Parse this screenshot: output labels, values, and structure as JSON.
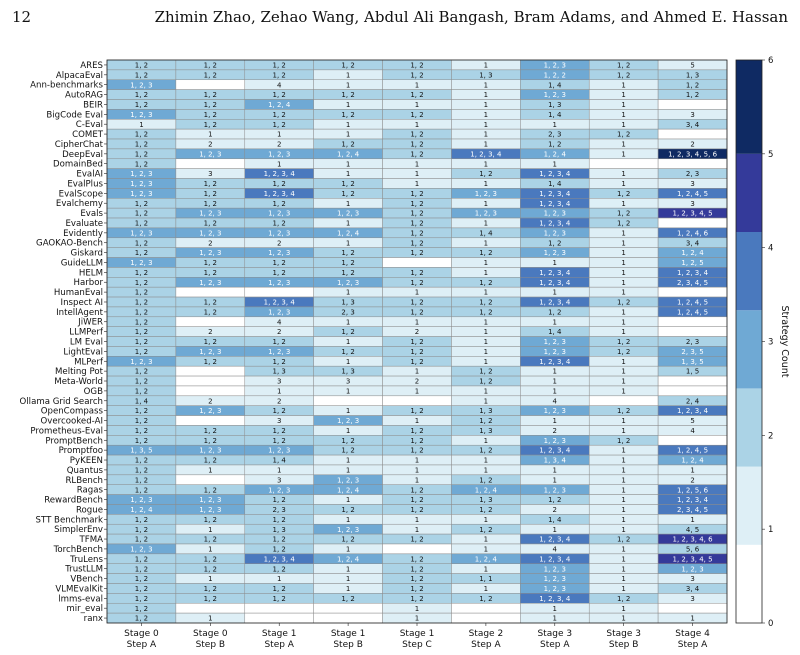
{
  "page": {
    "number": "12",
    "authors": "Zhimin Zhao, Zehao Wang, Abdul Ali Bangash, Bram Adams, and Ahmed E. Hassan"
  },
  "chart_data": {
    "type": "heatmap",
    "columns": [
      {
        "stage": "Stage 0",
        "step": "Step A"
      },
      {
        "stage": "Stage 0",
        "step": "Step B"
      },
      {
        "stage": "Stage 1",
        "step": "Step A"
      },
      {
        "stage": "Stage 1",
        "step": "Step B"
      },
      {
        "stage": "Stage 1",
        "step": "Step C"
      },
      {
        "stage": "Stage 2",
        "step": "Step A"
      },
      {
        "stage": "Stage 3",
        "step": "Step A"
      },
      {
        "stage": "Stage 3",
        "step": "Step B"
      },
      {
        "stage": "Stage 4",
        "step": "Step A"
      }
    ],
    "rows": [
      {
        "name": "ARES",
        "cells": [
          "1, 2",
          "1, 2",
          "1, 2",
          "1, 2",
          "1, 2",
          "1",
          "1, 2, 3",
          "1, 2",
          "5"
        ]
      },
      {
        "name": "AlpacaEval",
        "cells": [
          "1, 2",
          "1, 2",
          "1, 2",
          "1",
          "1, 2",
          "1, 3",
          "1, 2, 2",
          "1, 2",
          "1, 3"
        ]
      },
      {
        "name": "Ann-benchmarks",
        "cells": [
          "1, 2, 3",
          "",
          "4",
          "1",
          "1",
          "1",
          "1, 4",
          "1",
          "1, 2"
        ]
      },
      {
        "name": "AutoRAG",
        "cells": [
          "1, 2",
          "1, 2",
          "1, 2",
          "1, 2",
          "1, 2",
          "1",
          "1, 2, 3",
          "1",
          "1, 2"
        ]
      },
      {
        "name": "BEIR",
        "cells": [
          "1, 2",
          "1, 2",
          "1, 2, 4",
          "1",
          "1",
          "1",
          "1, 3",
          "1",
          ""
        ]
      },
      {
        "name": "BigCode Eval",
        "cells": [
          "1, 2, 3",
          "1, 2",
          "1, 2",
          "1, 2",
          "1, 2",
          "1",
          "1, 4",
          "1",
          "3"
        ]
      },
      {
        "name": "C-Eval",
        "cells": [
          "1",
          "1, 2",
          "1, 2",
          "1",
          "1",
          "1",
          "1",
          "1",
          "3, 4"
        ]
      },
      {
        "name": "COMET",
        "cells": [
          "1, 2",
          "1",
          "1",
          "1",
          "1, 2",
          "1",
          "2, 3",
          "1, 2",
          ""
        ]
      },
      {
        "name": "CipherChat",
        "cells": [
          "1, 2",
          "2",
          "2",
          "1, 2",
          "1, 2",
          "1",
          "1, 2",
          "1",
          "2"
        ]
      },
      {
        "name": "DeepEval",
        "cells": [
          "1, 2",
          "1, 2, 3",
          "1, 2, 3",
          "1, 2, 4",
          "1, 2",
          "1, 2, 3, 4",
          "1, 2, 4",
          "1",
          "1, 2, 3, 4, 5, 6"
        ]
      },
      {
        "name": "DomainBed",
        "cells": [
          "1, 2",
          "",
          "1",
          "1",
          "1",
          "1",
          "1",
          "",
          ""
        ]
      },
      {
        "name": "EvalAI",
        "cells": [
          "1, 2, 3",
          "3",
          "1, 2, 3, 4",
          "1",
          "1",
          "1, 2",
          "1, 2, 3, 4",
          "1",
          "2, 3"
        ]
      },
      {
        "name": "EvalPlus",
        "cells": [
          "1, 2, 3",
          "1, 2",
          "1, 2",
          "1, 2",
          "1",
          "1",
          "1, 4",
          "1",
          "3"
        ]
      },
      {
        "name": "EvalScope",
        "cells": [
          "1, 2, 3",
          "1, 2",
          "1, 2, 3, 4",
          "1, 2",
          "1, 2",
          "1, 2, 3",
          "1, 2, 3, 4",
          "1, 2",
          "1, 2, 4, 5"
        ]
      },
      {
        "name": "Evalchemy",
        "cells": [
          "1, 2",
          "1, 2",
          "1, 2",
          "1",
          "1, 2",
          "1",
          "1, 2, 3, 4",
          "1",
          "3"
        ]
      },
      {
        "name": "Evals",
        "cells": [
          "1, 2",
          "1, 2, 3",
          "1, 2, 3",
          "1, 2, 3",
          "1, 2",
          "1, 2, 3",
          "1, 2, 3",
          "1, 2",
          "1, 2, 3, 4, 5"
        ]
      },
      {
        "name": "Evaluate",
        "cells": [
          "1, 2",
          "1, 2",
          "1, 2",
          "1",
          "1, 2",
          "1",
          "1, 2, 3, 4",
          "1, 2",
          ""
        ]
      },
      {
        "name": "Evidently",
        "cells": [
          "1, 2, 3",
          "1, 2, 3",
          "1, 2, 3",
          "1, 2, 4",
          "1, 2",
          "1, 4",
          "1, 2, 3",
          "1",
          "1, 2, 4, 6"
        ]
      },
      {
        "name": "GAOKAO-Bench",
        "cells": [
          "1, 2",
          "2",
          "2",
          "1",
          "1, 2",
          "1",
          "1, 2",
          "1",
          "3, 4"
        ]
      },
      {
        "name": "Giskard",
        "cells": [
          "1, 2",
          "1, 2, 3",
          "1, 2, 3",
          "1, 2",
          "1, 2",
          "1, 2",
          "1, 2, 3",
          "1",
          "1, 2, 4"
        ]
      },
      {
        "name": "GuideLLM",
        "cells": [
          "1, 2, 3",
          "1, 2",
          "1, 2",
          "1, 2",
          "",
          "1",
          "1",
          "1",
          "1, 2, 5"
        ]
      },
      {
        "name": "HELM",
        "cells": [
          "1, 2",
          "1, 2",
          "1, 2",
          "1, 2",
          "1, 2",
          "1",
          "1, 2, 3, 4",
          "1",
          "1, 2, 3, 4"
        ]
      },
      {
        "name": "Harbor",
        "cells": [
          "1, 2",
          "1, 2, 3",
          "1, 2, 3",
          "1, 2, 3",
          "1, 2",
          "1, 2",
          "1, 2, 3, 4",
          "1",
          "2, 3, 4, 5"
        ]
      },
      {
        "name": "HumanEval",
        "cells": [
          "1, 2",
          "",
          "",
          "1",
          "1",
          "1",
          "1",
          "1",
          ""
        ]
      },
      {
        "name": "Inspect AI",
        "cells": [
          "1, 2",
          "1, 2",
          "1, 2, 3, 4",
          "1, 3",
          "1, 2",
          "1, 2",
          "1, 2, 3, 4",
          "1, 2",
          "1, 2, 4, 5"
        ]
      },
      {
        "name": "IntellAgent",
        "cells": [
          "1, 2",
          "1, 2",
          "1, 2, 3",
          "2, 3",
          "1, 2",
          "1, 2",
          "1, 2",
          "1",
          "1, 2, 4, 5"
        ]
      },
      {
        "name": "JiWER",
        "cells": [
          "1, 2",
          "",
          "4",
          "1",
          "1",
          "1",
          "1",
          "1",
          ""
        ]
      },
      {
        "name": "LLMPerf",
        "cells": [
          "1, 2",
          "2",
          "2",
          "1, 2",
          "2",
          "1",
          "1, 4",
          "1",
          ""
        ]
      },
      {
        "name": "LM Eval",
        "cells": [
          "1, 2",
          "1, 2",
          "1, 2",
          "1",
          "1, 2",
          "1",
          "1, 2, 3",
          "1, 2",
          "2, 3"
        ]
      },
      {
        "name": "LightEval",
        "cells": [
          "1, 2",
          "1, 2, 3",
          "1, 2, 3",
          "1, 2",
          "1, 2",
          "1",
          "1, 2, 3",
          "1, 2",
          "2, 3, 5"
        ]
      },
      {
        "name": "MLPerf",
        "cells": [
          "1, 2, 3",
          "1, 2",
          "1, 2",
          "1",
          "1, 2",
          "1",
          "1, 2, 3, 4",
          "1",
          "1, 3, 5"
        ]
      },
      {
        "name": "Melting Pot",
        "cells": [
          "1, 2",
          "",
          "1, 3",
          "1, 3",
          "1",
          "1, 2",
          "1",
          "1",
          "1, 5"
        ]
      },
      {
        "name": "Meta-World",
        "cells": [
          "1, 2",
          "",
          "3",
          "3",
          "2",
          "1, 2",
          "1",
          "1",
          ""
        ]
      },
      {
        "name": "OGB",
        "cells": [
          "1, 2",
          "",
          "1",
          "1",
          "1",
          "1",
          "1",
          "1",
          ""
        ]
      },
      {
        "name": "Ollama Grid Search",
        "cells": [
          "1, 4",
          "2",
          "2",
          "",
          "",
          "1",
          "4",
          "",
          "2, 4"
        ]
      },
      {
        "name": "OpenCompass",
        "cells": [
          "1, 2",
          "1, 2, 3",
          "1, 2",
          "1",
          "1, 2",
          "1, 3",
          "1, 2, 3",
          "1, 2",
          "1, 2, 3, 4"
        ]
      },
      {
        "name": "Overcooked-AI",
        "cells": [
          "1, 2",
          "",
          "3",
          "1, 2, 3",
          "1",
          "1, 2",
          "1",
          "1",
          "5"
        ]
      },
      {
        "name": "Prometheus-Eval",
        "cells": [
          "1, 2",
          "1, 2",
          "1, 2",
          "1",
          "1, 2",
          "1, 3",
          "2",
          "1",
          "4"
        ]
      },
      {
        "name": "PromptBench",
        "cells": [
          "1, 2",
          "1, 2",
          "1, 2",
          "1, 2",
          "1, 2",
          "1",
          "1, 2, 3",
          "1, 2",
          ""
        ]
      },
      {
        "name": "Promptfoo",
        "cells": [
          "1, 3, 5",
          "1, 2, 3",
          "1, 2, 3",
          "1, 2",
          "1, 2",
          "1, 2",
          "1, 2, 3, 4",
          "1",
          "1, 2, 4, 5"
        ]
      },
      {
        "name": "PyKEEN",
        "cells": [
          "1, 2",
          "1, 2",
          "1, 4",
          "1",
          "1",
          "1",
          "1, 3, 4",
          "1",
          "1, 2, 4"
        ]
      },
      {
        "name": "Quantus",
        "cells": [
          "1, 2",
          "1",
          "1",
          "1",
          "1",
          "1",
          "1",
          "1",
          "1"
        ]
      },
      {
        "name": "RLBench",
        "cells": [
          "1, 2",
          "",
          "3",
          "1, 2, 3",
          "1",
          "1, 2",
          "1",
          "1",
          "2"
        ]
      },
      {
        "name": "Ragas",
        "cells": [
          "1, 2",
          "1, 2",
          "1, 2, 3",
          "1, 2, 4",
          "1, 2",
          "1, 2, 4",
          "1, 2, 3",
          "1",
          "1, 2, 5, 6"
        ]
      },
      {
        "name": "RewardBench",
        "cells": [
          "1, 2, 3",
          "1, 2, 3",
          "1, 2",
          "1",
          "1, 2",
          "1, 3",
          "1, 2",
          "1",
          "1, 2, 3, 4"
        ]
      },
      {
        "name": "Rogue",
        "cells": [
          "1, 2, 4",
          "1, 2, 3",
          "2, 3",
          "1, 2",
          "1, 2",
          "1, 2",
          "2",
          "1",
          "2, 3, 4, 5"
        ]
      },
      {
        "name": "STT Benchmark",
        "cells": [
          "1, 2",
          "1, 2",
          "1, 2",
          "1",
          "1",
          "1",
          "1, 4",
          "1",
          "1"
        ]
      },
      {
        "name": "SimplerEnv",
        "cells": [
          "1, 2",
          "1",
          "1, 3",
          "1, 2, 3",
          "1",
          "1, 2",
          "1",
          "1",
          "4, 5"
        ]
      },
      {
        "name": "TFMA",
        "cells": [
          "1, 2",
          "1, 2",
          "1, 2",
          "1, 2",
          "1, 2",
          "1",
          "1, 2, 3, 4",
          "1, 2",
          "1, 2, 3, 4, 6"
        ]
      },
      {
        "name": "TorchBench",
        "cells": [
          "1, 2, 3",
          "1",
          "1, 2",
          "1",
          "",
          "1",
          "4",
          "1",
          "5, 6"
        ]
      },
      {
        "name": "TruLens",
        "cells": [
          "1, 2",
          "1, 2",
          "1, 2, 3, 4",
          "1, 2, 4",
          "1, 2",
          "1, 2, 4",
          "1, 2, 3, 4",
          "1",
          "1, 2, 3, 4, 5"
        ]
      },
      {
        "name": "TrustLLM",
        "cells": [
          "1, 2",
          "1, 2",
          "1, 2",
          "1",
          "1, 2",
          "1",
          "1, 2, 3",
          "1",
          "1, 2, 3"
        ]
      },
      {
        "name": "VBench",
        "cells": [
          "1, 2",
          "1",
          "1",
          "1",
          "1, 2",
          "1, 1",
          "1, 2, 3",
          "1",
          "3"
        ]
      },
      {
        "name": "VLMEvalKit",
        "cells": [
          "1, 2",
          "1, 2",
          "1, 2",
          "1",
          "1, 2",
          "1",
          "1, 2, 3",
          "1",
          "3, 4"
        ]
      },
      {
        "name": "lmms-eval",
        "cells": [
          "1, 2",
          "1, 2",
          "1, 2",
          "1, 2",
          "1, 2",
          "1, 2",
          "1, 2, 3, 4",
          "1, 2",
          "3"
        ]
      },
      {
        "name": "mir_eval",
        "cells": [
          "1, 2",
          "",
          "",
          "",
          "1",
          "",
          "1",
          "1",
          ""
        ]
      },
      {
        "name": "ranx",
        "cells": [
          "1, 2",
          "1",
          "",
          "",
          "1",
          "",
          "1",
          "1",
          "1"
        ]
      }
    ],
    "colorbar": {
      "label": "Strategy Count",
      "ticks": [
        "0",
        "1",
        "2",
        "3",
        "4",
        "5",
        "6"
      ],
      "range": [
        0,
        6
      ],
      "colors": [
        "#deeff6",
        "#abd3e6",
        "#6fa9d4",
        "#4a79be",
        "#343a9a",
        "#0f2a63"
      ]
    }
  }
}
